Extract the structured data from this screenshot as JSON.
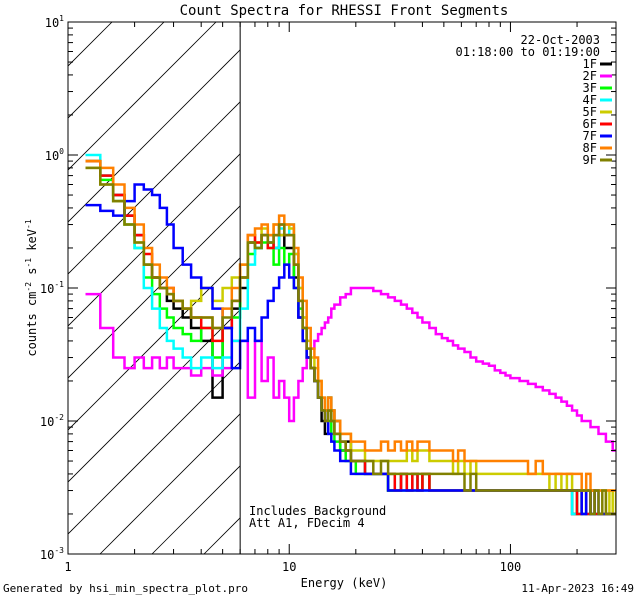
{
  "chart_data": {
    "type": "line",
    "title": "Count Spectra for RHESSI Front Segments",
    "xlabel": "Energy (keV)",
    "ylabel_parts": [
      "counts cm",
      "-2",
      " s",
      "-1",
      " keV",
      "-1"
    ],
    "xscale": "log",
    "yscale": "log",
    "xlim": [
      1,
      300
    ],
    "ylim": [
      0.001,
      10
    ],
    "x_ticks": [
      {
        "value": 1,
        "label": "1"
      },
      {
        "value": 10,
        "label": "10"
      },
      {
        "value": 100,
        "label": "100"
      }
    ],
    "y_ticks": [
      {
        "value": 0.001,
        "base": "10",
        "exp": "-3"
      },
      {
        "value": 0.01,
        "base": "10",
        "exp": "-2"
      },
      {
        "value": 0.1,
        "base": "10",
        "exp": "-1"
      },
      {
        "value": 1,
        "base": "10",
        "exp": "0"
      },
      {
        "value": 10,
        "base": "10",
        "exp": "1"
      }
    ],
    "hatched_region": [
      1,
      6
    ],
    "vertical_line_at": 6,
    "info": {
      "date": "22-Oct-2003",
      "time_range": "01:18:00 to 01:19:00",
      "note_1": "Includes Background",
      "note_2": "Att A1, FDecim 4"
    },
    "energy_bins": [
      1.2,
      1.4,
      1.6,
      1.8,
      2.0,
      2.2,
      2.4,
      2.6,
      2.8,
      3.0,
      3.3,
      3.6,
      4.0,
      4.5,
      5.0,
      5.5,
      6.0,
      6.5,
      7.0,
      7.5,
      8.0,
      8.5,
      9.0,
      9.5,
      10,
      10.5,
      11,
      11.5,
      12,
      12.5,
      13,
      13.5,
      14,
      14.5,
      15,
      15.5,
      16,
      17,
      18,
      19,
      20,
      22,
      24,
      26,
      28,
      30,
      32,
      34,
      36,
      38,
      40,
      43,
      46,
      49,
      52,
      55,
      58,
      62,
      66,
      70,
      75,
      80,
      85,
      90,
      95,
      100,
      110,
      120,
      130,
      140,
      150,
      160,
      170,
      180,
      190,
      200,
      210,
      220,
      230,
      240,
      250,
      260,
      270,
      280,
      290,
      300
    ],
    "series": [
      {
        "name": "1F",
        "color": "#000000",
        "values": [
          0.9,
          0.7,
          0.5,
          0.35,
          0.25,
          0.15,
          0.12,
          0.1,
          0.08,
          0.07,
          0.06,
          0.05,
          0.04,
          0.015,
          0.05,
          0.07,
          0.1,
          0.22,
          0.2,
          0.25,
          0.22,
          0.2,
          0.25,
          0.2,
          0.2,
          0.12,
          0.06,
          0.04,
          0.03,
          0.025,
          0.02,
          0.015,
          0.01,
          0.008,
          0.015,
          0.012,
          0.01,
          0.006,
          0.007,
          0.005,
          0.005,
          0.004,
          0.004,
          0.004,
          0.003,
          0.003,
          0.004,
          0.003,
          0.004,
          0.003,
          0.004,
          0.003,
          0.003,
          0.003,
          0.003,
          0.003,
          0.003,
          0.003,
          0.003,
          0.003,
          0.003,
          0.003,
          0.003,
          0.003,
          0.003,
          0.003,
          0.003,
          0.003,
          0.003,
          0.003,
          0.003,
          0.003,
          0.003,
          0.003,
          0.002,
          0.003,
          0.002,
          0.003,
          0.002,
          0.002,
          0.002,
          0.002,
          0.002,
          0.002,
          0.002,
          0.002
        ]
      },
      {
        "name": "2F",
        "color": "#ff00ff",
        "values": [
          0.09,
          0.05,
          0.03,
          0.025,
          0.03,
          0.025,
          0.03,
          0.025,
          0.03,
          0.025,
          0.025,
          0.022,
          0.025,
          0.022,
          0.025,
          0.04,
          0.04,
          0.015,
          0.04,
          0.02,
          0.03,
          0.015,
          0.02,
          0.015,
          0.01,
          0.015,
          0.02,
          0.025,
          0.03,
          0.035,
          0.04,
          0.045,
          0.05,
          0.055,
          0.06,
          0.07,
          0.075,
          0.085,
          0.09,
          0.1,
          0.1,
          0.1,
          0.095,
          0.09,
          0.085,
          0.08,
          0.075,
          0.07,
          0.065,
          0.06,
          0.055,
          0.05,
          0.045,
          0.042,
          0.04,
          0.037,
          0.035,
          0.033,
          0.03,
          0.028,
          0.027,
          0.026,
          0.024,
          0.023,
          0.022,
          0.021,
          0.02,
          0.019,
          0.018,
          0.017,
          0.016,
          0.015,
          0.014,
          0.013,
          0.012,
          0.011,
          0.01,
          0.01,
          0.009,
          0.009,
          0.008,
          0.008,
          0.007,
          0.007,
          0.006,
          0.006
        ]
      },
      {
        "name": "3F",
        "color": "#00ff00",
        "values": [
          0.9,
          0.65,
          0.45,
          0.3,
          0.2,
          0.12,
          0.09,
          0.07,
          0.06,
          0.05,
          0.045,
          0.04,
          0.05,
          0.03,
          0.05,
          0.06,
          0.12,
          0.18,
          0.2,
          0.22,
          0.2,
          0.15,
          0.2,
          0.15,
          0.18,
          0.1,
          0.07,
          0.05,
          0.03,
          0.025,
          0.02,
          0.015,
          0.012,
          0.01,
          0.01,
          0.008,
          0.007,
          0.006,
          0.005,
          0.005,
          0.004,
          0.004,
          0.004,
          0.004,
          0.003,
          0.003,
          0.003,
          0.003,
          0.003,
          0.003,
          0.004,
          0.003,
          0.003,
          0.003,
          0.003,
          0.003,
          0.003,
          0.003,
          0.003,
          0.003,
          0.003,
          0.003,
          0.003,
          0.003,
          0.003,
          0.003,
          0.003,
          0.003,
          0.003,
          0.003,
          0.003,
          0.003,
          0.003,
          0.003,
          0.003,
          0.002,
          0.003,
          0.002,
          0.003,
          0.002,
          0.002,
          0.002,
          0.002,
          0.002,
          0.002,
          0.002
        ]
      },
      {
        "name": "4F",
        "color": "#00ffff",
        "values": [
          1.0,
          0.7,
          0.45,
          0.3,
          0.2,
          0.1,
          0.07,
          0.05,
          0.04,
          0.035,
          0.03,
          0.025,
          0.03,
          0.025,
          0.03,
          0.04,
          0.07,
          0.15,
          0.2,
          0.25,
          0.22,
          0.2,
          0.28,
          0.25,
          0.3,
          0.18,
          0.1,
          0.06,
          0.035,
          0.025,
          0.02,
          0.015,
          0.012,
          0.01,
          0.015,
          0.01,
          0.008,
          0.007,
          0.006,
          0.005,
          0.005,
          0.004,
          0.004,
          0.004,
          0.004,
          0.003,
          0.003,
          0.003,
          0.004,
          0.003,
          0.003,
          0.003,
          0.003,
          0.003,
          0.003,
          0.003,
          0.003,
          0.003,
          0.003,
          0.003,
          0.003,
          0.003,
          0.003,
          0.003,
          0.003,
          0.003,
          0.003,
          0.003,
          0.003,
          0.003,
          0.003,
          0.003,
          0.003,
          0.003,
          0.002,
          0.003,
          0.002,
          0.003,
          0.002,
          0.002,
          0.002,
          0.002,
          0.002,
          0.002,
          0.002,
          0.002
        ]
      },
      {
        "name": "5F",
        "color": "#cccc00",
        "values": [
          0.8,
          0.6,
          0.45,
          0.3,
          0.22,
          0.15,
          0.12,
          0.1,
          0.09,
          0.08,
          0.07,
          0.08,
          0.1,
          0.08,
          0.1,
          0.12,
          0.15,
          0.25,
          0.22,
          0.28,
          0.25,
          0.3,
          0.25,
          0.3,
          0.28,
          0.18,
          0.1,
          0.06,
          0.04,
          0.03,
          0.025,
          0.02,
          0.015,
          0.012,
          0.015,
          0.012,
          0.01,
          0.008,
          0.008,
          0.006,
          0.006,
          0.005,
          0.005,
          0.005,
          0.005,
          0.005,
          0.005,
          0.006,
          0.005,
          0.006,
          0.006,
          0.005,
          0.005,
          0.005,
          0.005,
          0.004,
          0.005,
          0.004,
          0.005,
          0.004,
          0.004,
          0.004,
          0.004,
          0.004,
          0.004,
          0.004,
          0.004,
          0.004,
          0.004,
          0.004,
          0.003,
          0.004,
          0.003,
          0.004,
          0.003,
          0.003,
          0.003,
          0.003,
          0.003,
          0.003,
          0.003,
          0.003,
          0.002,
          0.003,
          0.002,
          0.003
        ]
      },
      {
        "name": "6F",
        "color": "#ff0000",
        "values": [
          0.9,
          0.7,
          0.5,
          0.35,
          0.25,
          0.18,
          0.12,
          0.1,
          0.1,
          0.08,
          0.07,
          0.06,
          0.05,
          0.04,
          0.05,
          0.08,
          0.12,
          0.25,
          0.22,
          0.25,
          0.2,
          0.25,
          0.3,
          0.25,
          0.25,
          0.15,
          0.08,
          0.05,
          0.03,
          0.025,
          0.02,
          0.015,
          0.012,
          0.01,
          0.012,
          0.01,
          0.008,
          0.007,
          0.006,
          0.005,
          0.005,
          0.004,
          0.004,
          0.004,
          0.004,
          0.003,
          0.004,
          0.003,
          0.004,
          0.003,
          0.004,
          0.003,
          0.003,
          0.003,
          0.003,
          0.003,
          0.003,
          0.003,
          0.003,
          0.003,
          0.003,
          0.003,
          0.003,
          0.003,
          0.003,
          0.003,
          0.003,
          0.003,
          0.003,
          0.003,
          0.003,
          0.003,
          0.003,
          0.003,
          0.003,
          0.002,
          0.003,
          0.002,
          0.003,
          0.002,
          0.002,
          0.002,
          0.002,
          0.002,
          0.002,
          0.002
        ]
      },
      {
        "name": "7F",
        "color": "#0000ff",
        "values": [
          0.42,
          0.38,
          0.35,
          0.45,
          0.6,
          0.55,
          0.5,
          0.4,
          0.3,
          0.2,
          0.15,
          0.12,
          0.1,
          0.07,
          0.05,
          0.025,
          0.04,
          0.05,
          0.04,
          0.06,
          0.08,
          0.1,
          0.12,
          0.15,
          0.12,
          0.1,
          0.06,
          0.04,
          0.03,
          0.025,
          0.02,
          0.015,
          0.012,
          0.01,
          0.008,
          0.007,
          0.006,
          0.005,
          0.005,
          0.004,
          0.004,
          0.004,
          0.004,
          0.004,
          0.003,
          0.003,
          0.003,
          0.003,
          0.003,
          0.003,
          0.003,
          0.003,
          0.003,
          0.003,
          0.003,
          0.003,
          0.003,
          0.003,
          0.003,
          0.003,
          0.003,
          0.003,
          0.003,
          0.003,
          0.003,
          0.003,
          0.003,
          0.003,
          0.003,
          0.003,
          0.003,
          0.003,
          0.003,
          0.003,
          0.003,
          0.003,
          0.002,
          0.003,
          0.002,
          0.003,
          0.002,
          0.002,
          0.002,
          0.002,
          0.002,
          0.002
        ]
      },
      {
        "name": "8F",
        "color": "#ff8000",
        "values": [
          0.9,
          0.8,
          0.6,
          0.4,
          0.3,
          0.2,
          0.15,
          0.12,
          0.1,
          0.08,
          0.07,
          0.06,
          0.06,
          0.05,
          0.07,
          0.1,
          0.15,
          0.25,
          0.28,
          0.3,
          0.25,
          0.3,
          0.35,
          0.3,
          0.3,
          0.2,
          0.12,
          0.08,
          0.05,
          0.035,
          0.03,
          0.02,
          0.015,
          0.012,
          0.015,
          0.012,
          0.01,
          0.008,
          0.008,
          0.007,
          0.007,
          0.006,
          0.006,
          0.007,
          0.006,
          0.007,
          0.006,
          0.007,
          0.006,
          0.007,
          0.007,
          0.006,
          0.006,
          0.006,
          0.006,
          0.005,
          0.006,
          0.005,
          0.005,
          0.005,
          0.005,
          0.005,
          0.005,
          0.005,
          0.005,
          0.005,
          0.005,
          0.004,
          0.005,
          0.004,
          0.004,
          0.004,
          0.004,
          0.004,
          0.004,
          0.004,
          0.003,
          0.004,
          0.003,
          0.003,
          0.003,
          0.003,
          0.003,
          0.003,
          0.003,
          0.003
        ]
      },
      {
        "name": "9F",
        "color": "#808000",
        "values": [
          0.8,
          0.6,
          0.45,
          0.3,
          0.22,
          0.15,
          0.12,
          0.1,
          0.09,
          0.08,
          0.07,
          0.06,
          0.06,
          0.05,
          0.06,
          0.08,
          0.12,
          0.22,
          0.2,
          0.25,
          0.22,
          0.25,
          0.3,
          0.25,
          0.25,
          0.15,
          0.08,
          0.05,
          0.035,
          0.025,
          0.02,
          0.015,
          0.012,
          0.01,
          0.012,
          0.01,
          0.008,
          0.007,
          0.006,
          0.005,
          0.005,
          0.005,
          0.004,
          0.005,
          0.004,
          0.004,
          0.004,
          0.004,
          0.004,
          0.004,
          0.004,
          0.004,
          0.004,
          0.004,
          0.004,
          0.004,
          0.004,
          0.003,
          0.004,
          0.003,
          0.003,
          0.003,
          0.003,
          0.003,
          0.003,
          0.003,
          0.003,
          0.003,
          0.003,
          0.003,
          0.003,
          0.003,
          0.003,
          0.003,
          0.003,
          0.003,
          0.003,
          0.003,
          0.002,
          0.003,
          0.002,
          0.003,
          0.002,
          0.002,
          0.002,
          0.002
        ]
      }
    ]
  },
  "footer": {
    "left": "Generated by hsi_min_spectra_plot.pro",
    "right": "11-Apr-2023 16:49"
  }
}
